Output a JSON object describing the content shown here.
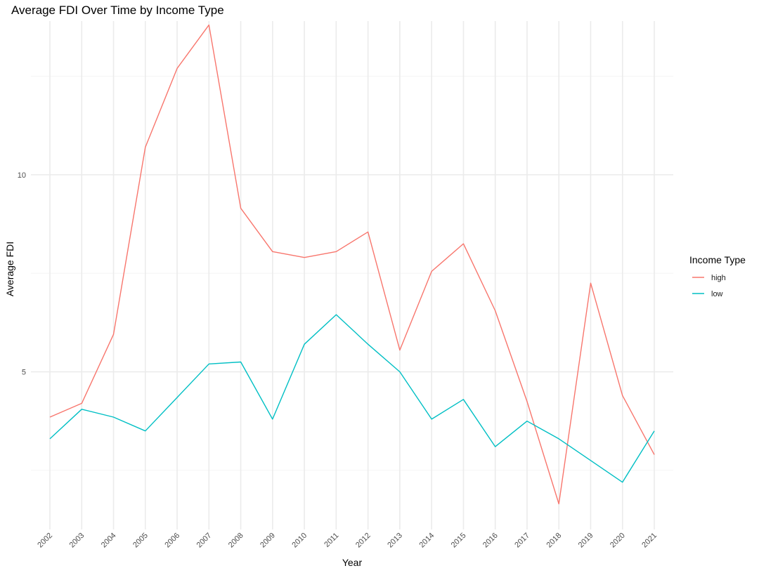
{
  "chart_data": {
    "type": "line",
    "title": "Average FDI Over Time by Income Type",
    "xlabel": "Year",
    "ylabel": "Average FDI",
    "categories": [
      "2002",
      "2003",
      "2004",
      "2005",
      "2006",
      "2007",
      "2008",
      "2009",
      "2010",
      "2011",
      "2012",
      "2013",
      "2014",
      "2015",
      "2016",
      "2017",
      "2018",
      "2019",
      "2020",
      "2021"
    ],
    "ylim": [
      1.0,
      13.9
    ],
    "y_major_ticks": [
      5,
      10
    ],
    "y_minor_ticks": [
      2.5,
      7.5,
      12.5
    ],
    "grid": true,
    "legend": {
      "title": "Income Type",
      "position": "right"
    },
    "series": [
      {
        "name": "high",
        "color": "#F8766D",
        "values": [
          3.85,
          4.2,
          5.95,
          10.7,
          12.7,
          13.8,
          9.15,
          8.05,
          7.9,
          8.05,
          8.55,
          5.55,
          7.55,
          8.25,
          6.55,
          4.25,
          1.65,
          7.25,
          4.4,
          2.9
        ]
      },
      {
        "name": "low",
        "color": "#00BFC4",
        "values": [
          3.3,
          4.05,
          3.85,
          3.5,
          4.35,
          5.2,
          5.25,
          3.8,
          5.7,
          6.45,
          5.7,
          5.0,
          3.8,
          4.3,
          3.1,
          3.75,
          3.3,
          2.75,
          2.2,
          3.5
        ]
      }
    ]
  }
}
